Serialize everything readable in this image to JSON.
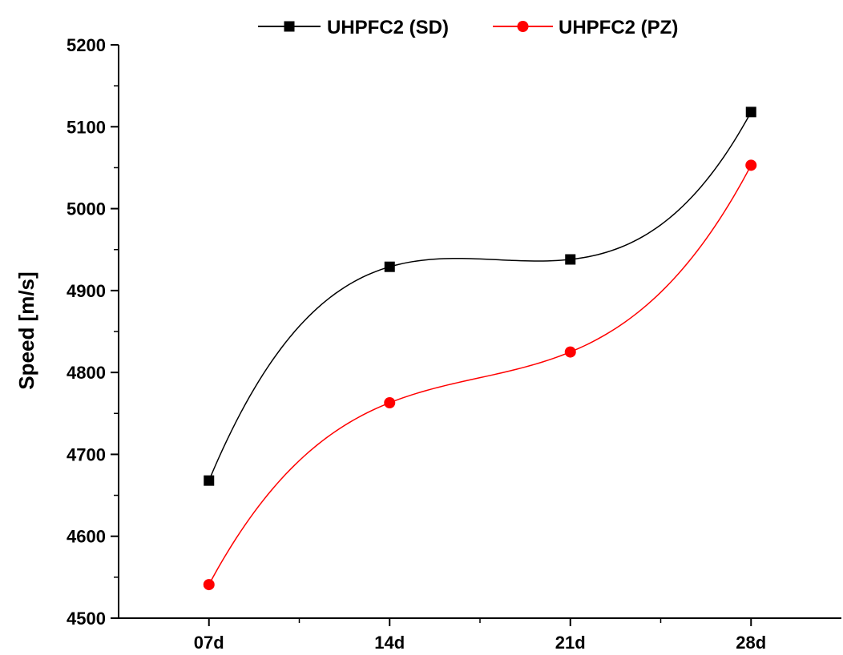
{
  "chart_data": {
    "type": "scatter",
    "categories": [
      "07d",
      "14d",
      "21d",
      "28d"
    ],
    "x": [
      1,
      2,
      3,
      4
    ],
    "xlim": [
      0.5,
      4.5
    ],
    "ylabel": "Speed [m/s]",
    "xlabel": "",
    "ylim": [
      4500,
      5200
    ],
    "yticks": [
      4500,
      4600,
      4700,
      4800,
      4900,
      5000,
      5100,
      5200
    ],
    "grid": false,
    "legend_position": "top",
    "series": [
      {
        "name": "UHPFC2 (SD)",
        "values": [
          4668,
          4929,
          4938,
          5118
        ],
        "color": "#000000",
        "marker": "square",
        "line": "smooth-fit"
      },
      {
        "name": "UHPFC2 (PZ)",
        "values": [
          4541,
          4763,
          4825,
          5053
        ],
        "color": "#ff0000",
        "marker": "circle",
        "line": "smooth-fit"
      }
    ]
  }
}
